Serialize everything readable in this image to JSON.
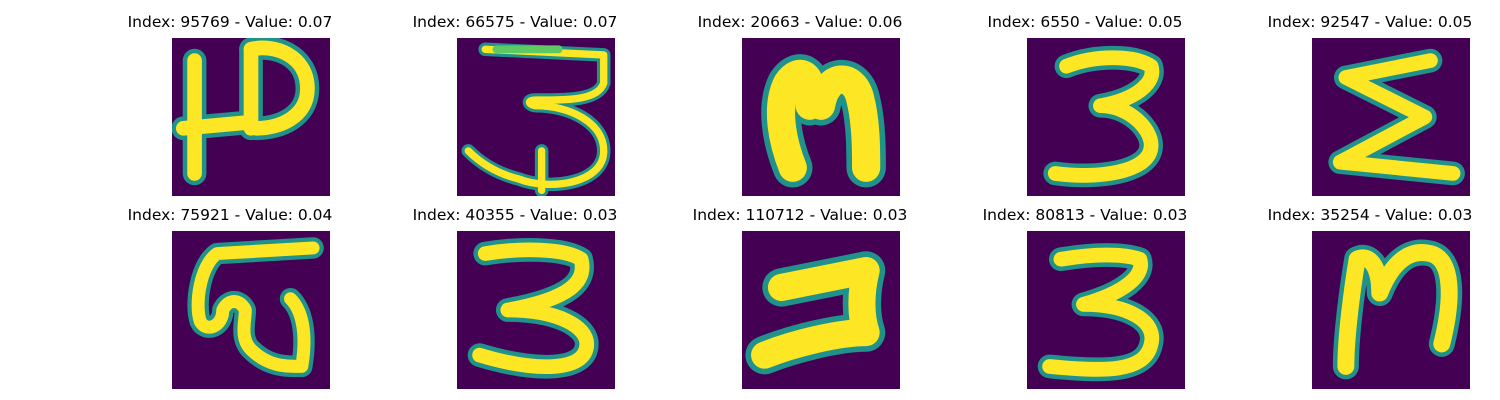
{
  "colors": {
    "background": "#440154",
    "stroke_core": "#fde725",
    "stroke_edge": "#21918c",
    "stroke_mid": "#5ec962"
  },
  "panels": [
    {
      "index": "95769",
      "value": "0.07",
      "title": "Index: 95769 - Value: 0.07",
      "glyph": "icon-shape-12"
    },
    {
      "index": "66575",
      "value": "0.07",
      "title": "Index: 66575 - Value: 0.07",
      "glyph": "icon-shape-3-open"
    },
    {
      "index": "20663",
      "value": "0.06",
      "title": "Index: 20663 - Value: 0.06",
      "glyph": "icon-shape-arch"
    },
    {
      "index": "6550",
      "value": "0.05",
      "title": "Index: 6550 - Value: 0.05",
      "glyph": "icon-shape-3"
    },
    {
      "index": "92547",
      "value": "0.05",
      "title": "Index: 92547 - Value: 0.05",
      "glyph": "icon-shape-sigma"
    },
    {
      "index": "75921",
      "value": "0.04",
      "title": "Index: 75921 - Value: 0.04",
      "glyph": "icon-shape-w-bar"
    },
    {
      "index": "40355",
      "value": "0.03",
      "title": "Index: 40355 - Value: 0.03",
      "glyph": "icon-shape-3"
    },
    {
      "index": "110712",
      "value": "0.03",
      "title": "Index: 110712 - Value: 0.03",
      "glyph": "icon-shape-2-rotated"
    },
    {
      "index": "80813",
      "value": "0.03",
      "title": "Index: 80813 - Value: 0.03",
      "glyph": "icon-shape-3"
    },
    {
      "index": "35254",
      "value": "0.03",
      "title": "Index: 35254 - Value: 0.03",
      "glyph": "icon-shape-n"
    }
  ]
}
